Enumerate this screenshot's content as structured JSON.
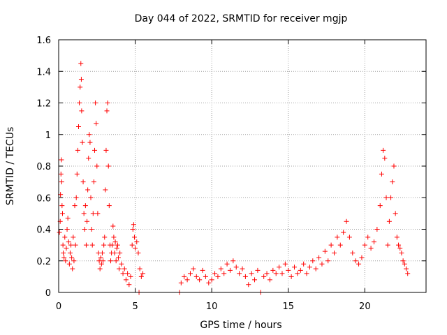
{
  "chart_data": {
    "type": "scatter",
    "title": "Day 044 of 2022, SRMTID for receiver mgjp",
    "xlabel": "GPS time / hours",
    "ylabel": "SRMTID / TECUs",
    "xlim": [
      0,
      24
    ],
    "ylim": [
      0,
      1.6
    ],
    "xticks": [
      0,
      5,
      10,
      15,
      20
    ],
    "xtick_labels": [
      "0",
      "5",
      "10",
      "15",
      "20"
    ],
    "yticks": [
      0,
      0.2,
      0.4,
      0.6,
      0.8,
      1,
      1.2,
      1.4,
      1.6
    ],
    "ytick_labels": [
      "0",
      "0.2",
      "0.4",
      "0.6",
      "0.8",
      "1",
      "1.2",
      "1.4",
      "1.6"
    ],
    "grid": true,
    "marker": "+",
    "color": "#ff0000",
    "series": [
      {
        "name": "SRMTID",
        "points": [
          [
            0.05,
            0.38
          ],
          [
            0.1,
            0.45
          ],
          [
            0.12,
            0.62
          ],
          [
            0.15,
            0.75
          ],
          [
            0.18,
            0.84
          ],
          [
            0.2,
            0.7
          ],
          [
            0.22,
            0.55
          ],
          [
            0.25,
            0.5
          ],
          [
            0.28,
            0.3
          ],
          [
            0.3,
            0.25
          ],
          [
            0.35,
            0.22
          ],
          [
            0.4,
            0.35
          ],
          [
            0.45,
            0.2
          ],
          [
            0.5,
            0.28
          ],
          [
            0.55,
            0.4
          ],
          [
            0.6,
            0.47
          ],
          [
            0.65,
            0.32
          ],
          [
            0.7,
            0.18
          ],
          [
            0.75,
            0.25
          ],
          [
            0.8,
            0.3
          ],
          [
            0.85,
            0.22
          ],
          [
            0.9,
            0.15
          ],
          [
            0.95,
            0.35
          ],
          [
            1.0,
            0.2
          ],
          [
            1.05,
            0.55
          ],
          [
            1.1,
            0.3
          ],
          [
            1.15,
            0.6
          ],
          [
            1.2,
            0.75
          ],
          [
            1.25,
            0.9
          ],
          [
            1.3,
            1.05
          ],
          [
            1.35,
            1.2
          ],
          [
            1.4,
            1.3
          ],
          [
            1.45,
            1.45
          ],
          [
            1.48,
            1.35
          ],
          [
            1.5,
            1.15
          ],
          [
            1.55,
            0.95
          ],
          [
            1.6,
            0.7
          ],
          [
            1.65,
            0.5
          ],
          [
            1.7,
            0.4
          ],
          [
            1.75,
            0.55
          ],
          [
            1.8,
            0.3
          ],
          [
            1.85,
            0.45
          ],
          [
            1.9,
            0.65
          ],
          [
            1.95,
            0.85
          ],
          [
            2.0,
            1.0
          ],
          [
            2.05,
            0.95
          ],
          [
            2.1,
            0.6
          ],
          [
            2.15,
            0.4
          ],
          [
            2.2,
            0.3
          ],
          [
            2.25,
            0.5
          ],
          [
            2.3,
            0.7
          ],
          [
            2.35,
            0.9
          ],
          [
            2.4,
            1.2
          ],
          [
            2.45,
            1.07
          ],
          [
            2.5,
            0.8
          ],
          [
            2.55,
            0.5
          ],
          [
            2.6,
            0.25
          ],
          [
            2.65,
            0.2
          ],
          [
            2.7,
            0.15
          ],
          [
            2.75,
            0.22
          ],
          [
            2.8,
            0.18
          ],
          [
            2.85,
            0.25
          ],
          [
            2.9,
            0.2
          ],
          [
            2.95,
            0.3
          ],
          [
            3.0,
            0.35
          ],
          [
            3.05,
            0.65
          ],
          [
            3.1,
            0.9
          ],
          [
            3.15,
            1.15
          ],
          [
            3.2,
            1.2
          ],
          [
            3.25,
            0.8
          ],
          [
            3.3,
            0.55
          ],
          [
            3.35,
            0.3
          ],
          [
            3.4,
            0.2
          ],
          [
            3.45,
            0.25
          ],
          [
            3.5,
            0.3
          ],
          [
            3.55,
            0.42
          ],
          [
            3.6,
            0.35
          ],
          [
            3.65,
            0.25
          ],
          [
            3.7,
            0.32
          ],
          [
            3.75,
            0.2
          ],
          [
            3.8,
            0.28
          ],
          [
            3.85,
            0.3
          ],
          [
            3.9,
            0.22
          ],
          [
            3.95,
            0.15
          ],
          [
            4.0,
            0.25
          ],
          [
            4.1,
            0.18
          ],
          [
            4.2,
            0.12
          ],
          [
            4.3,
            0.15
          ],
          [
            4.4,
            0.08
          ],
          [
            4.5,
            0.12
          ],
          [
            4.6,
            0.05
          ],
          [
            4.7,
            0.1
          ],
          [
            4.8,
            0.3
          ],
          [
            4.85,
            0.4
          ],
          [
            4.9,
            0.43
          ],
          [
            4.95,
            0.35
          ],
          [
            5.0,
            0.28
          ],
          [
            5.1,
            0.32
          ],
          [
            5.2,
            0.25
          ],
          [
            5.3,
            0.15
          ],
          [
            5.4,
            0.1
          ],
          [
            5.5,
            0.12
          ],
          [
            5.25,
            0.0
          ],
          [
            7.9,
            0.0
          ],
          [
            8.0,
            0.06
          ],
          [
            8.2,
            0.1
          ],
          [
            8.4,
            0.08
          ],
          [
            8.6,
            0.12
          ],
          [
            8.8,
            0.15
          ],
          [
            9.0,
            0.1
          ],
          [
            9.2,
            0.08
          ],
          [
            9.4,
            0.14
          ],
          [
            9.6,
            0.1
          ],
          [
            9.8,
            0.06
          ],
          [
            10.0,
            0.08
          ],
          [
            10.2,
            0.12
          ],
          [
            10.4,
            0.1
          ],
          [
            10.6,
            0.15
          ],
          [
            10.8,
            0.12
          ],
          [
            11.0,
            0.18
          ],
          [
            11.2,
            0.14
          ],
          [
            11.4,
            0.2
          ],
          [
            11.6,
            0.16
          ],
          [
            11.8,
            0.12
          ],
          [
            12.0,
            0.15
          ],
          [
            12.2,
            0.1
          ],
          [
            12.4,
            0.05
          ],
          [
            12.6,
            0.12
          ],
          [
            12.8,
            0.08
          ],
          [
            13.0,
            0.14
          ],
          [
            13.2,
            0.0
          ],
          [
            13.4,
            0.1
          ],
          [
            13.6,
            0.12
          ],
          [
            13.8,
            0.08
          ],
          [
            14.0,
            0.14
          ],
          [
            14.2,
            0.12
          ],
          [
            14.4,
            0.16
          ],
          [
            14.6,
            0.12
          ],
          [
            14.8,
            0.18
          ],
          [
            15.0,
            0.14
          ],
          [
            15.2,
            0.1
          ],
          [
            15.4,
            0.16
          ],
          [
            15.6,
            0.12
          ],
          [
            15.8,
            0.14
          ],
          [
            16.0,
            0.18
          ],
          [
            16.2,
            0.12
          ],
          [
            16.4,
            0.16
          ],
          [
            16.6,
            0.2
          ],
          [
            16.8,
            0.15
          ],
          [
            17.0,
            0.22
          ],
          [
            17.2,
            0.18
          ],
          [
            17.4,
            0.26
          ],
          [
            17.6,
            0.2
          ],
          [
            17.8,
            0.3
          ],
          [
            18.0,
            0.25
          ],
          [
            18.2,
            0.35
          ],
          [
            18.4,
            0.3
          ],
          [
            18.6,
            0.38
          ],
          [
            18.8,
            0.45
          ],
          [
            19.0,
            0.35
          ],
          [
            19.2,
            0.25
          ],
          [
            19.4,
            0.2
          ],
          [
            19.6,
            0.18
          ],
          [
            19.8,
            0.22
          ],
          [
            20.0,
            0.3
          ],
          [
            20.2,
            0.35
          ],
          [
            20.4,
            0.28
          ],
          [
            20.6,
            0.32
          ],
          [
            20.8,
            0.4
          ],
          [
            21.0,
            0.55
          ],
          [
            21.1,
            0.75
          ],
          [
            21.2,
            0.9
          ],
          [
            21.3,
            0.85
          ],
          [
            21.4,
            0.6
          ],
          [
            21.5,
            0.3
          ],
          [
            21.6,
            0.45
          ],
          [
            21.7,
            0.6
          ],
          [
            21.8,
            0.7
          ],
          [
            21.9,
            0.8
          ],
          [
            22.0,
            0.5
          ],
          [
            22.1,
            0.35
          ],
          [
            22.2,
            0.3
          ],
          [
            22.3,
            0.28
          ],
          [
            22.4,
            0.25
          ],
          [
            22.5,
            0.2
          ],
          [
            22.6,
            0.18
          ],
          [
            22.7,
            0.15
          ],
          [
            22.8,
            0.12
          ]
        ]
      }
    ]
  }
}
